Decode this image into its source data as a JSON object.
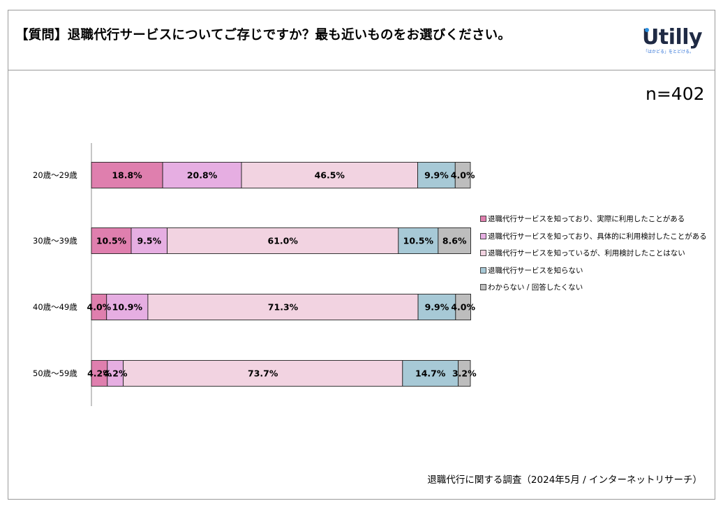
{
  "header": {
    "title": "【質問】退職代行サービスについてご存じですか？最も近いものをお選びください。",
    "logo_text": "Utilly",
    "logo_tagline": "「はかどる」をとどける。"
  },
  "sample_size": "n=402",
  "footer": {
    "source": "退職代行に関する調査（2024年5月 / インターネットリサーチ）"
  },
  "colors": {
    "aware_used": "#df7fae",
    "aware_considered": "#e6aee2",
    "aware_not_used": "#f2d3e1",
    "not_aware": "#a7c9d6",
    "unknown": "#bdbdbd"
  },
  "chart_data": {
    "type": "bar",
    "orientation": "horizontal",
    "stacked": "percent",
    "title": "",
    "xlabel": "",
    "ylabel": "",
    "xlim": [
      0,
      100
    ],
    "categories": [
      "20歳～29歳",
      "30歳～39歳",
      "40歳～49歳",
      "50歳～59歳"
    ],
    "series": [
      {
        "name": "退職代行サービスを知っており、実際に利用したことがある",
        "color": "#df7fae",
        "values": [
          18.8,
          10.5,
          4.0,
          4.2
        ]
      },
      {
        "name": "退職代行サービスを知っており、具体的に利用検討したことがある",
        "color": "#e6aee2",
        "values": [
          20.8,
          9.5,
          10.9,
          4.2
        ]
      },
      {
        "name": "退職代行サービスを知っているが、利用検討したことはない",
        "color": "#f2d3e1",
        "values": [
          46.5,
          61.0,
          71.3,
          73.7
        ]
      },
      {
        "name": "退職代行サービスを知らない",
        "color": "#a7c9d6",
        "values": [
          9.9,
          10.5,
          9.9,
          14.7
        ]
      },
      {
        "name": "わからない / 回答したくない",
        "color": "#bdbdbd",
        "values": [
          4.0,
          8.6,
          4.0,
          3.2
        ]
      }
    ],
    "data_labels": [
      [
        "18.8%",
        "20.8%",
        "46.5%",
        "9.9%",
        "4.0%"
      ],
      [
        "10.5%",
        "9.5%",
        "61.0%",
        "10.5%",
        "8.6%"
      ],
      [
        "4.0%",
        "10.9%",
        "71.3%",
        "9.9%",
        "4.0%"
      ],
      [
        "4.2%",
        "4.2%",
        "73.7%",
        "14.7%",
        "3.2%"
      ]
    ],
    "legend_position": "right"
  }
}
